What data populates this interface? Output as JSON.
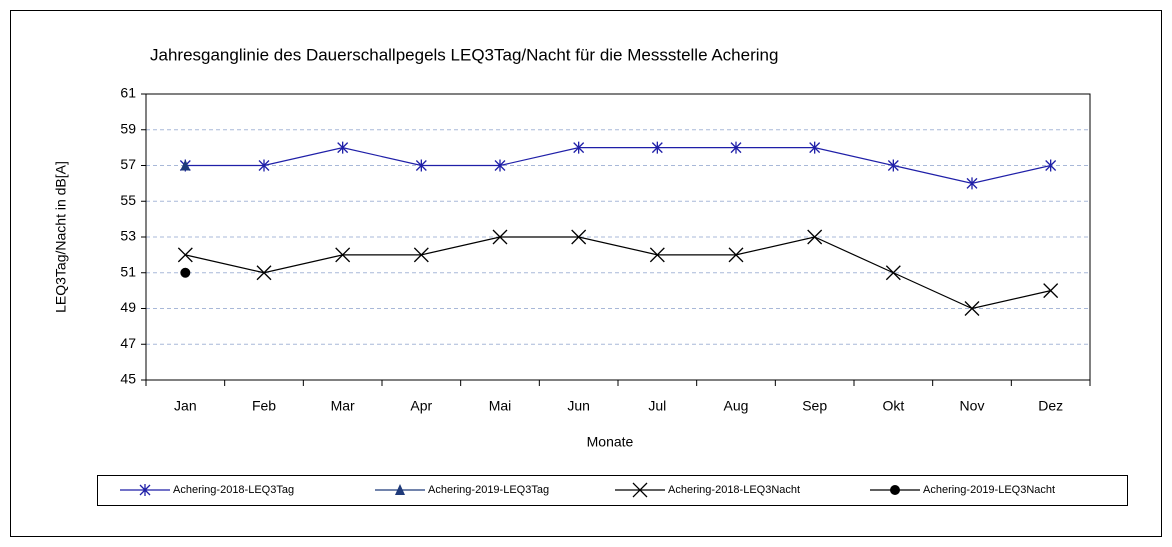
{
  "chart_data": {
    "type": "line",
    "title": "Jahresganglinie des Dauerschallpegels LEQ3Tag/Nacht für die Messstelle Achering",
    "x_label": "Monate",
    "y_label": "LEQ3Tag/Nacht in dB[A]",
    "categories": [
      "Jan",
      "Feb",
      "Mar",
      "Apr",
      "Mai",
      "Jun",
      "Jul",
      "Aug",
      "Sep",
      "Okt",
      "Nov",
      "Dez"
    ],
    "series": [
      {
        "name": "Achering-2018-LEQ3Tag",
        "color": "#1f1fa8",
        "marker": "asterisk",
        "values": [
          57,
          57,
          58,
          57,
          57,
          58,
          58,
          58,
          58,
          57,
          56,
          57
        ]
      },
      {
        "name": "Achering-2019-LEQ3Tag",
        "color": "#1f3a7a",
        "marker": "triangle",
        "values": [
          57,
          null,
          null,
          null,
          null,
          null,
          null,
          null,
          null,
          null,
          null,
          null
        ]
      },
      {
        "name": "Achering-2018-LEQ3Nacht",
        "color": "#000000",
        "marker": "x",
        "values": [
          52,
          51,
          52,
          52,
          53,
          53,
          52,
          52,
          53,
          51,
          49,
          50
        ]
      },
      {
        "name": "Achering-2019-LEQ3Nacht",
        "color": "#000000",
        "marker": "circle",
        "values": [
          51,
          null,
          null,
          null,
          null,
          null,
          null,
          null,
          null,
          null,
          null,
          null
        ]
      }
    ],
    "ylim": [
      45,
      61
    ],
    "yticks": [
      45,
      47,
      49,
      51,
      53,
      55,
      57,
      59,
      61
    ],
    "grid": true,
    "legend": "bottom"
  }
}
